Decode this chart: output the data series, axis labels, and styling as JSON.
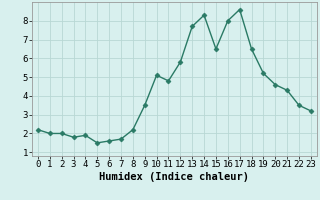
{
  "x": [
    0,
    1,
    2,
    3,
    4,
    5,
    6,
    7,
    8,
    9,
    10,
    11,
    12,
    13,
    14,
    15,
    16,
    17,
    18,
    19,
    20,
    21,
    22,
    23
  ],
  "y": [
    2.2,
    2.0,
    2.0,
    1.8,
    1.9,
    1.5,
    1.6,
    1.7,
    2.2,
    3.5,
    5.1,
    4.8,
    5.8,
    7.7,
    8.3,
    6.5,
    8.0,
    8.6,
    6.5,
    5.2,
    4.6,
    4.3,
    3.5,
    3.2
  ],
  "xlabel": "Humidex (Indice chaleur)",
  "xlim": [
    -0.5,
    23.5
  ],
  "ylim": [
    0.8,
    9.0
  ],
  "yticks": [
    1,
    2,
    3,
    4,
    5,
    6,
    7,
    8
  ],
  "xticks": [
    0,
    1,
    2,
    3,
    4,
    5,
    6,
    7,
    8,
    9,
    10,
    11,
    12,
    13,
    14,
    15,
    16,
    17,
    18,
    19,
    20,
    21,
    22,
    23
  ],
  "line_color": "#2a7a65",
  "marker": "D",
  "marker_size": 2.5,
  "bg_color": "#d8f0ee",
  "grid_color": "#b8d8d4",
  "xlabel_fontsize": 7.5,
  "tick_fontsize": 6.5
}
